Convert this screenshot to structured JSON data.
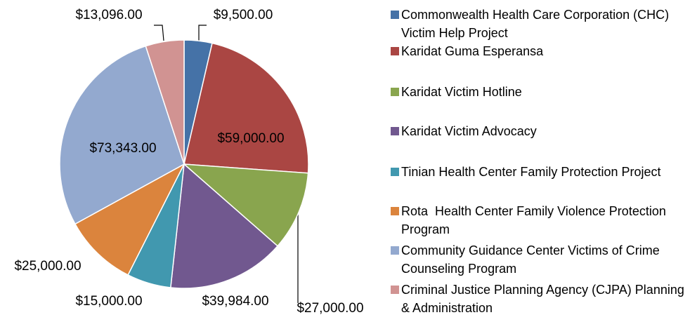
{
  "chart_data": {
    "type": "pie",
    "categories": [
      "Commonwealth Health Care Corporation (CHC) Victim Help Project",
      "Karidat Guma Esperansa",
      "Karidat Victim Hotline",
      "Karidat Victim Advocacy",
      "Tinian Health Center Family Protection Project",
      "Rota  Health Center Family Violence Protection Program",
      "Community Guidance Center Victims of Crime Counseling Program",
      "Criminal Justice Planning Agency (CJPA) Planning & Administration"
    ],
    "values": [
      9500,
      59000,
      27000,
      39984,
      15000,
      25000,
      73343,
      13096
    ],
    "value_labels": [
      "$9,500.00",
      "$59,000.00",
      "$27,000.00",
      "$39,984.00",
      "$15,000.00",
      "$25,000.00",
      "$73,343.00",
      "$13,096.00"
    ],
    "colors": [
      "#4572a7",
      "#aa4643",
      "#89a54e",
      "#71588f",
      "#4198af",
      "#db843d",
      "#93a9cf",
      "#d19392"
    ],
    "legend": "right"
  }
}
